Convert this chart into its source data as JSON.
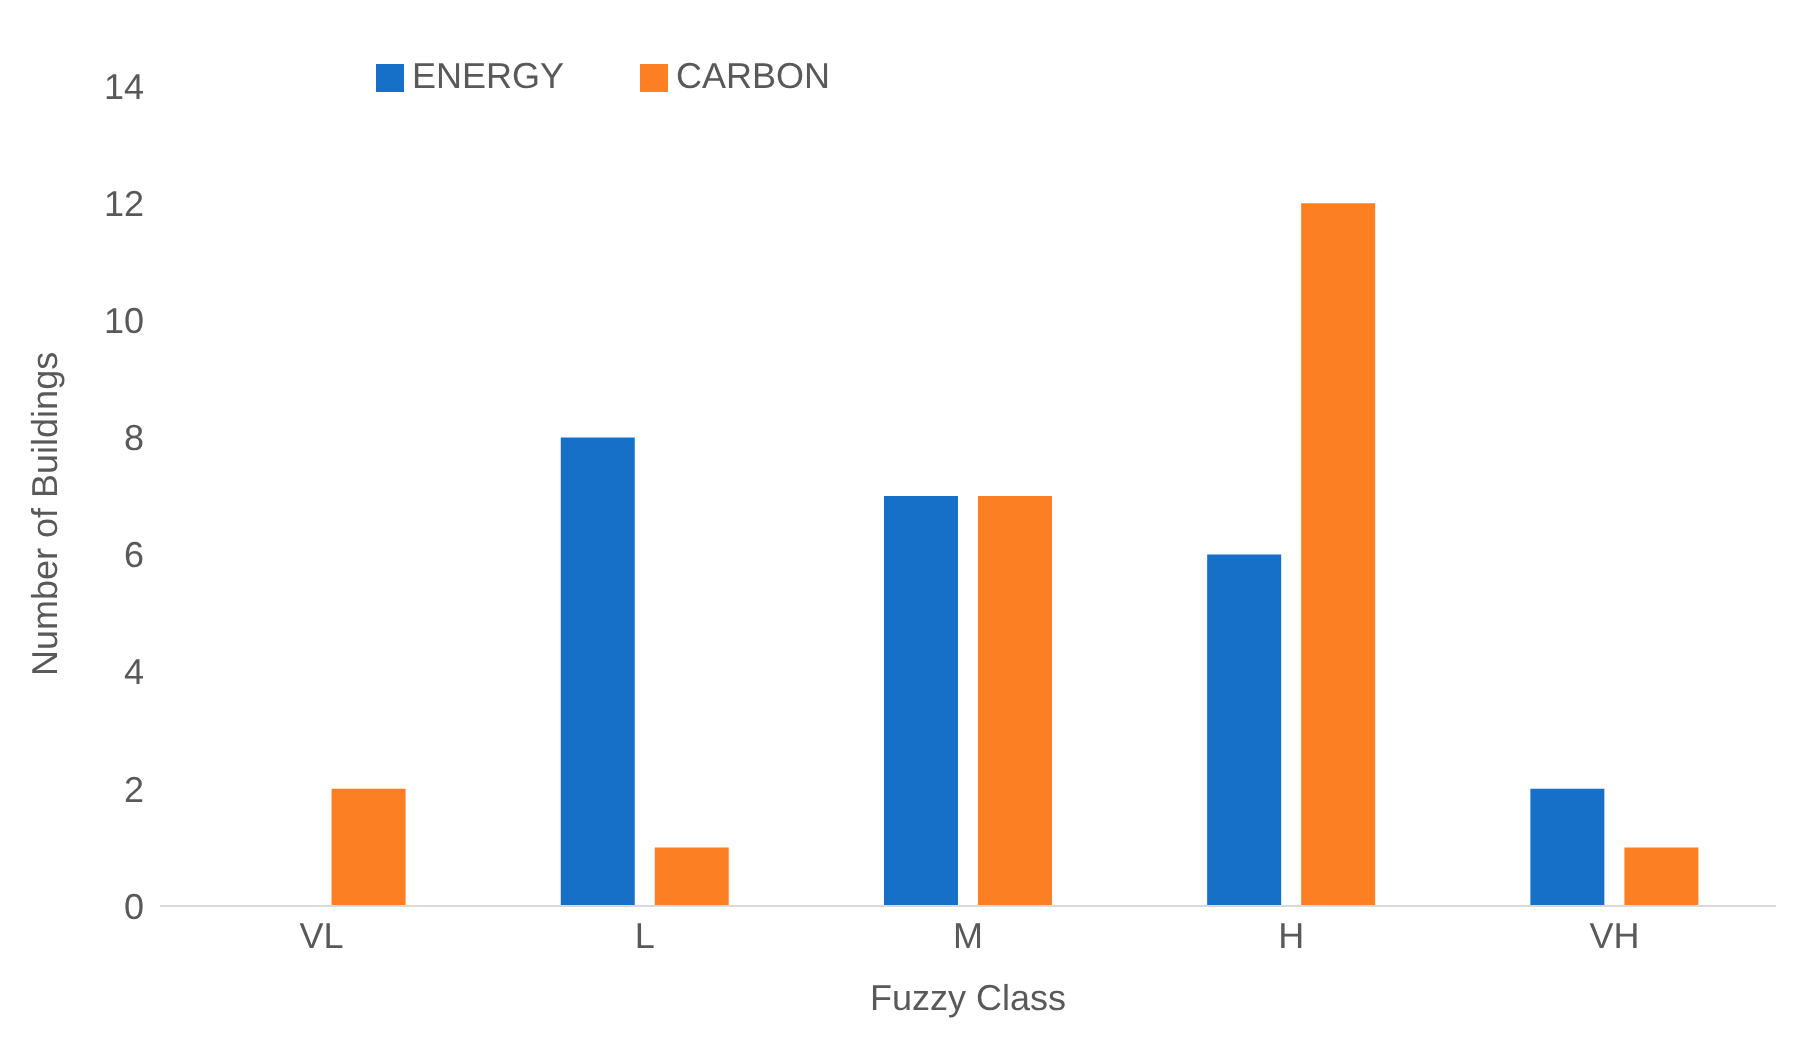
{
  "chart_data": {
    "type": "bar",
    "xlabel": "Fuzzy Class",
    "ylabel": "Number of Buildings",
    "categories": [
      "VL",
      "L",
      "M",
      "H",
      "VH"
    ],
    "series": [
      {
        "name": "ENERGY",
        "color": "#1770c8",
        "values": [
          0,
          8,
          7,
          6,
          2
        ]
      },
      {
        "name": "CARBON",
        "color": "#fd7f23",
        "values": [
          2,
          1,
          7,
          12,
          1
        ]
      }
    ],
    "ylim": [
      0,
      14
    ],
    "yticks": [
      0,
      2,
      4,
      6,
      8,
      10,
      12,
      14
    ],
    "grid": false,
    "legend": "top left"
  }
}
